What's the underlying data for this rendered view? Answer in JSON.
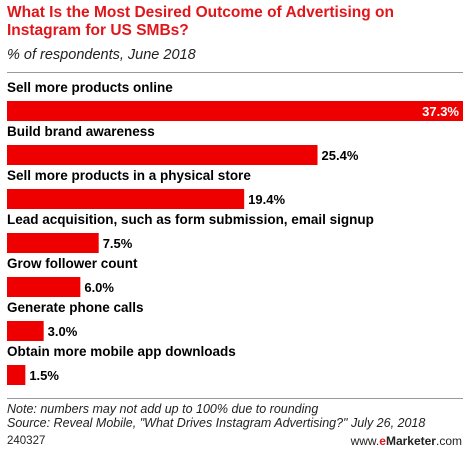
{
  "header": {
    "title": "What Is the Most Desired Outcome of Advertising on Instagram for US SMBs?",
    "subtitle": "% of respondents, June 2018"
  },
  "chart_data": {
    "type": "bar",
    "orientation": "horizontal",
    "categories": [
      "Sell more products online",
      "Build brand awareness",
      "Sell more products in a physical store",
      "Lead acquisition, such as form submission, email signup",
      "Grow follower count",
      "Generate phone calls",
      "Obtain more mobile app downloads"
    ],
    "values": [
      37.3,
      25.4,
      19.4,
      7.5,
      6.0,
      3.0,
      1.5
    ],
    "value_labels": [
      "37.3%",
      "25.4%",
      "19.4%",
      "7.5%",
      "6.0%",
      "3.0%",
      "1.5%"
    ],
    "title": "What Is the Most Desired Outcome of Advertising on Instagram for US SMBs?",
    "subtitle": "% of respondents, June 2018",
    "xlim": [
      0,
      37.3
    ],
    "grid": false,
    "bar_color": "#ee0000"
  },
  "footer": {
    "note": "Note: numbers may not add up to 100% due to rounding",
    "source": "Source: Reveal Mobile, \"What Drives Instagram Advertising?\" July 26, 2018",
    "chart_id": "240327",
    "brand_prefix": "www.",
    "brand_em": "e",
    "brand_rest": "Marketer",
    "brand_suffix": ".com"
  },
  "colors": {
    "accent": "#e0161b",
    "bar": "#ee0000"
  }
}
